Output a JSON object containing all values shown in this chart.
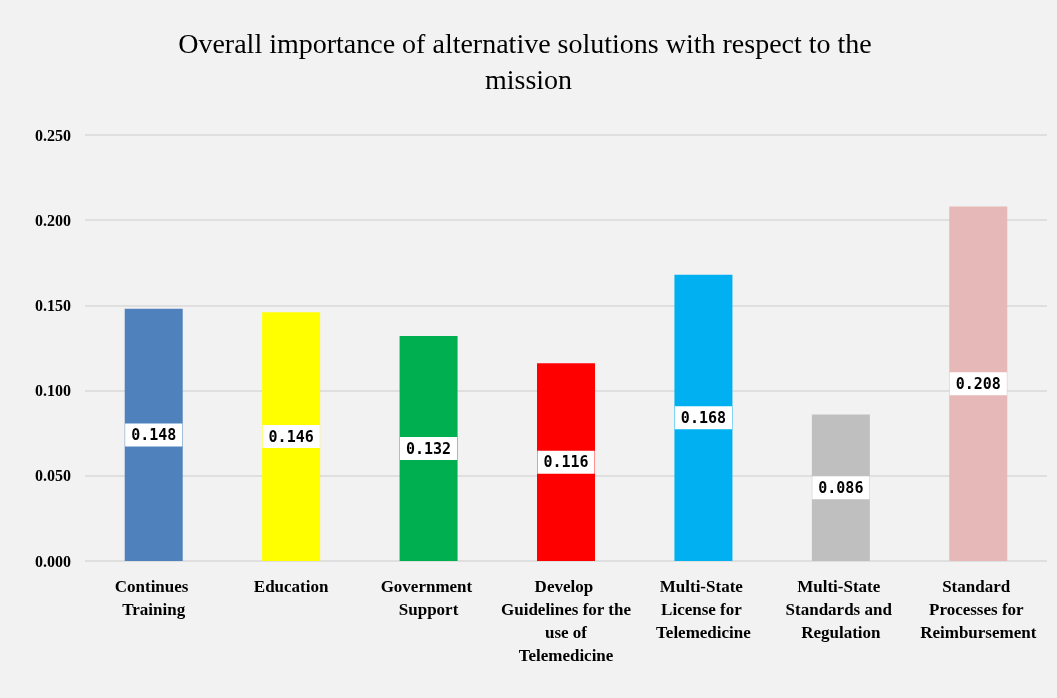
{
  "chart_data": {
    "type": "bar",
    "title": "Overall importance of alternative solutions with respect to the mission",
    "categories": [
      "Continues Training",
      "Education",
      "Government Support",
      "Develop Guidelines for the use of Telemedicine",
      "Multi-State License for Telemedicine",
      "Multi-State Standards and Regulation",
      "Standard Processes for Reimbursement"
    ],
    "values": [
      0.148,
      0.146,
      0.132,
      0.116,
      0.168,
      0.086,
      0.208
    ],
    "colors": [
      "#4f81bd",
      "#ffff00",
      "#00b050",
      "#ff0000",
      "#00b0f0",
      "#bfbfbf",
      "#e6b9b8"
    ],
    "ylim": [
      0,
      0.25
    ],
    "yticks": [
      {
        "value": 0,
        "label": "0.000"
      },
      {
        "value": 0.05,
        "label": "0.050"
      },
      {
        "value": 0.1,
        "label": "0.100"
      },
      {
        "value": 0.15,
        "label": "0.150"
      },
      {
        "value": 0.2,
        "label": "0.200"
      },
      {
        "value": 0.25,
        "label": "0.250"
      }
    ],
    "grid": "y",
    "data_labels": true
  }
}
